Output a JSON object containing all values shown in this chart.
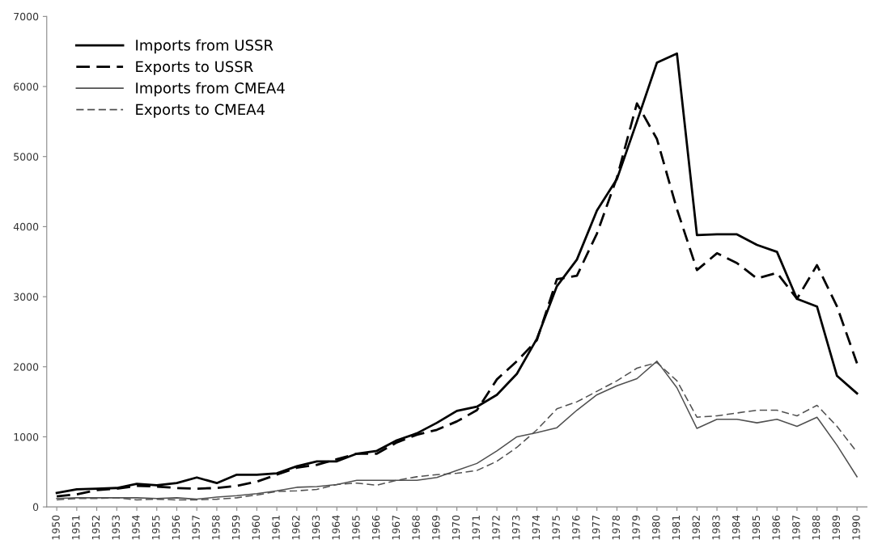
{
  "chart_data": {
    "type": "line",
    "categories": [
      "1950",
      "1951",
      "1952",
      "1953",
      "1954",
      "1955",
      "1956",
      "1957",
      "1958",
      "1959",
      "1960",
      "1961",
      "1962",
      "1963",
      "1964",
      "1965",
      "1966",
      "1967",
      "1968",
      "1969",
      "1970",
      "1971",
      "1972",
      "1973",
      "1974",
      "1975",
      "1976",
      "1977",
      "1978",
      "1979",
      "1980",
      "1981",
      "1982",
      "1983",
      "1984",
      "1985",
      "1986",
      "1987",
      "1988",
      "1989",
      "1990"
    ],
    "series": [
      {
        "name": "Imports from USSR",
        "color": "#000000",
        "line_style": "solid",
        "values": [
          200,
          250,
          260,
          270,
          330,
          310,
          340,
          420,
          340,
          460,
          460,
          480,
          580,
          650,
          650,
          760,
          800,
          950,
          1050,
          1200,
          1370,
          1430,
          1600,
          1900,
          2400,
          3150,
          3530,
          4230,
          4680,
          5500,
          6340,
          6470,
          3880,
          3890,
          3890,
          3740,
          3640,
          2970,
          2860,
          1870,
          1620
        ]
      },
      {
        "name": "Exports to USSR",
        "color": "#000000",
        "line_style": "dashed",
        "values": [
          150,
          180,
          240,
          260,
          300,
          290,
          270,
          260,
          270,
          300,
          360,
          460,
          560,
          600,
          680,
          760,
          760,
          920,
          1030,
          1100,
          1220,
          1380,
          1820,
          2080,
          2380,
          3250,
          3300,
          3900,
          4700,
          5760,
          5250,
          4250,
          3380,
          3620,
          3480,
          3260,
          3340,
          2970,
          3450,
          2860,
          2050
        ]
      },
      {
        "name": "Imports from CMEA4",
        "color": "#505050",
        "line_style": "solid",
        "values": [
          120,
          130,
          130,
          130,
          130,
          120,
          130,
          110,
          140,
          160,
          190,
          230,
          280,
          290,
          320,
          380,
          380,
          380,
          380,
          420,
          520,
          620,
          800,
          1000,
          1060,
          1130,
          1380,
          1600,
          1730,
          1830,
          2080,
          1700,
          1120,
          1250,
          1250,
          1200,
          1250,
          1150,
          1280,
          880,
          430
        ]
      },
      {
        "name": "Exports to CMEA4",
        "color": "#505050",
        "line_style": "dashed",
        "values": [
          100,
          120,
          120,
          130,
          100,
          110,
          100,
          100,
          110,
          130,
          170,
          220,
          230,
          250,
          320,
          340,
          310,
          380,
          430,
          460,
          480,
          520,
          650,
          850,
          1100,
          1400,
          1500,
          1650,
          1800,
          1980,
          2060,
          1800,
          1280,
          1300,
          1340,
          1380,
          1380,
          1300,
          1450,
          1150,
          780
        ]
      }
    ],
    "ylim": [
      0,
      7000
    ],
    "yticks": [
      0,
      1000,
      2000,
      3000,
      4000,
      5000,
      6000,
      7000
    ],
    "grid": false,
    "legend": "top left",
    "marker": "none"
  }
}
